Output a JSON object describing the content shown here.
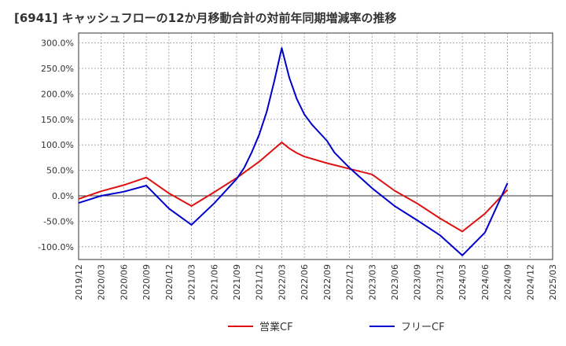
{
  "chart_data": {
    "type": "line",
    "title": "[6941]  キャッシュフローの12か月移動合計の対前年同期増減率の推移",
    "xlabel": "",
    "ylabel": "",
    "x_ticks": [
      "2019/12",
      "2020/03",
      "2020/06",
      "2020/09",
      "2020/12",
      "2021/03",
      "2021/06",
      "2021/09",
      "2021/12",
      "2022/03",
      "2022/06",
      "2022/09",
      "2022/12",
      "2023/03",
      "2023/06",
      "2023/09",
      "2023/12",
      "2024/03",
      "2024/06",
      "2024/09",
      "2024/12",
      "2025/03"
    ],
    "y_ticks": [
      "300.0%",
      "250.0%",
      "200.0%",
      "150.0%",
      "100.0%",
      "50.0%",
      "0.0%",
      "-50.0%",
      "-100.0%"
    ],
    "ylim": [
      -125,
      300
    ],
    "grid": true,
    "legend_position": "bottom",
    "series": [
      {
        "name": "営業CF",
        "color": "#dd1111",
        "points": [
          [
            "2019/12",
            -6
          ],
          [
            "2020/03",
            9
          ],
          [
            "2020/06",
            21
          ],
          [
            "2020/09",
            36
          ],
          [
            "2020/12",
            5
          ],
          [
            "2021/03",
            -20
          ],
          [
            "2021/06",
            7
          ],
          [
            "2021/09",
            35
          ],
          [
            "2021/12",
            67
          ],
          [
            "2022/03",
            105
          ],
          [
            "2022/04",
            93
          ],
          [
            "2022/05",
            84
          ],
          [
            "2022/06",
            77
          ],
          [
            "2022/09",
            64
          ],
          [
            "2022/12",
            53
          ],
          [
            "2023/03",
            42
          ],
          [
            "2023/06",
            10
          ],
          [
            "2023/09",
            -15
          ],
          [
            "2023/12",
            -44
          ],
          [
            "2024/03",
            -70
          ],
          [
            "2024/06",
            -35
          ],
          [
            "2024/09",
            12
          ]
        ]
      },
      {
        "name": "フリーCF",
        "color": "#0000cc",
        "points": [
          [
            "2019/12",
            -14
          ],
          [
            "2020/03",
            0
          ],
          [
            "2020/06",
            8
          ],
          [
            "2020/09",
            20
          ],
          [
            "2020/12",
            -25
          ],
          [
            "2021/03",
            -57
          ],
          [
            "2021/06",
            -15
          ],
          [
            "2021/09",
            33
          ],
          [
            "2021/10",
            55
          ],
          [
            "2021/11",
            85
          ],
          [
            "2021/12",
            120
          ],
          [
            "2022/01",
            165
          ],
          [
            "2022/02",
            225
          ],
          [
            "2022/03",
            290
          ],
          [
            "2022/04",
            232
          ],
          [
            "2022/05",
            190
          ],
          [
            "2022/06",
            160
          ],
          [
            "2022/07",
            140
          ],
          [
            "2022/09",
            108
          ],
          [
            "2022/10",
            85
          ],
          [
            "2022/12",
            55
          ],
          [
            "2023/03",
            15
          ],
          [
            "2023/06",
            -20
          ],
          [
            "2023/09",
            -48
          ],
          [
            "2023/12",
            -77
          ],
          [
            "2024/03",
            -117
          ],
          [
            "2024/06",
            -72
          ],
          [
            "2024/09",
            25
          ]
        ]
      }
    ]
  }
}
